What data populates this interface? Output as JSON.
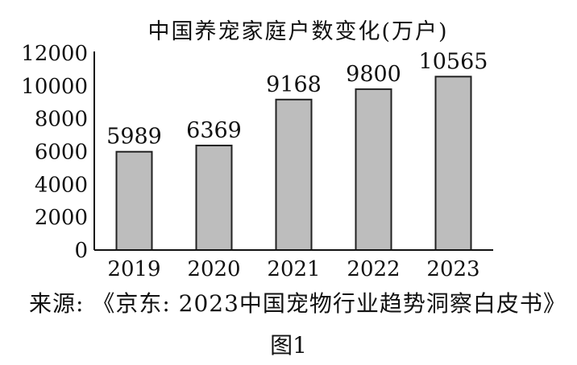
{
  "chart_data": {
    "type": "bar",
    "title": "中国养宠家庭户数变化(万户)",
    "categories": [
      "2019",
      "2020",
      "2021",
      "2022",
      "2023"
    ],
    "values": [
      5989,
      6369,
      9168,
      9800,
      10565
    ],
    "data_labels": [
      "5989",
      "6369",
      "9168",
      "9800",
      "10565"
    ],
    "yticks": [
      "0",
      "2000",
      "4000",
      "6000",
      "8000",
      "10000",
      "12000"
    ],
    "ylim": [
      0,
      12000
    ],
    "grid": false,
    "legend": "none",
    "bar_color": "#bdbdbd",
    "bar_edge_color": "#222222"
  },
  "source": "来源: 《京东: 2023中国宠物行业趋势洞察白皮书》",
  "caption": "图1"
}
